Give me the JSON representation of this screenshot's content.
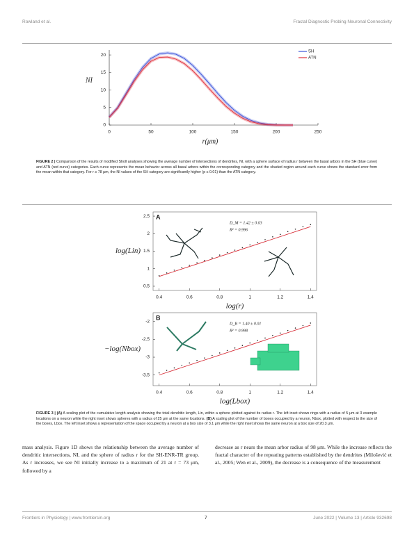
{
  "header": {
    "left": "Rowland et al.",
    "right": "Fractal Diagnostic Probing Neuronal Connectivity"
  },
  "chart_data": [
    {
      "type": "line",
      "ylabel": "NI",
      "xlabel": "r(μm)",
      "x": [
        0,
        10,
        20,
        30,
        40,
        50,
        60,
        70,
        80,
        90,
        100,
        110,
        120,
        130,
        140,
        150,
        160,
        170,
        180,
        190,
        200,
        210,
        220
      ],
      "series": [
        {
          "name": "SH",
          "color": "#3a52d9",
          "values": [
            2.3,
            5,
            9,
            13,
            16.5,
            19,
            20.3,
            20.6,
            20.2,
            19,
            17,
            14.5,
            11.8,
            9,
            6.4,
            4.2,
            2.5,
            1.3,
            0.6,
            0.2,
            0.05,
            0,
            0
          ]
        },
        {
          "name": "ATN",
          "color": "#e0303a",
          "values": [
            2.2,
            4.8,
            8.6,
            12.5,
            15.8,
            18.2,
            19.3,
            19.4,
            18.8,
            17.5,
            15.5,
            13,
            10.3,
            7.7,
            5.3,
            3.4,
            1.9,
            0.9,
            0.35,
            0.1,
            0,
            0,
            0
          ]
        }
      ],
      "xlim": [
        0,
        250
      ],
      "xticks": [
        0,
        50,
        100,
        150,
        200,
        250
      ],
      "ylim": [
        0,
        21.4
      ],
      "yticks": [
        0,
        5,
        10,
        15,
        20
      ],
      "legend": "upper right"
    },
    {
      "type": "scatter",
      "panel_label": "A",
      "ylabel": "log(Lin)",
      "xlabel": "log(r)",
      "color": "#222222",
      "fit_color": "#d8303a",
      "x": [
        0.4,
        0.45,
        0.5,
        0.55,
        0.6,
        0.65,
        0.7,
        0.75,
        0.8,
        0.85,
        0.9,
        0.95,
        1,
        1.05,
        1.1,
        1.15,
        1.2,
        1.25,
        1.3,
        1.35,
        1.4
      ],
      "values": [
        0.74,
        0.82,
        0.9,
        0.97,
        1.04,
        1.11,
        1.18,
        1.25,
        1.33,
        1.4,
        1.47,
        1.54,
        1.62,
        1.69,
        1.77,
        1.85,
        1.92,
        2,
        2.07,
        2.14,
        2.2
      ],
      "fit": {
        "x": [
          0.4,
          1.4
        ],
        "values": [
          0.78,
          2.2
        ]
      },
      "annotations": [
        "D_M = 1.42 ± 0.03",
        "R² = 0.996"
      ],
      "xlim": [
        0.36,
        1.44
      ],
      "xticks": [
        0.4,
        0.6,
        0.8,
        1,
        1.2,
        1.4
      ],
      "ylim": [
        0.38,
        2.62
      ],
      "yticks": [
        0.5,
        1,
        1.5,
        2,
        2.5
      ]
    },
    {
      "type": "scatter",
      "panel_label": "B",
      "ylabel": "−log(Nbox)",
      "xlabel": "log(Lbox)",
      "color": "#222222",
      "fit_color": "#d8303a",
      "x": [
        0.4,
        0.45,
        0.5,
        0.55,
        0.6,
        0.65,
        0.7,
        0.75,
        0.8,
        0.85,
        0.9,
        0.95,
        1,
        1.05,
        1.1,
        1.15,
        1.2,
        1.25,
        1.3,
        1.35,
        1.4
      ],
      "values": [
        -3.5,
        -3.43,
        -3.36,
        -3.29,
        -3.22,
        -3.15,
        -3.08,
        -3.01,
        -2.94,
        -2.87,
        -2.8,
        -2.73,
        -2.66,
        -2.59,
        -2.52,
        -2.45,
        -2.38,
        -2.31,
        -2.24,
        -2.17,
        -2.1
      ],
      "fit": {
        "x": [
          0.4,
          1.4
        ],
        "values": [
          -3.5,
          -2.1
        ]
      },
      "annotations": [
        "D_B = 1.40 ± 0.01",
        "R² = 0.998"
      ],
      "xlim": [
        0.36,
        1.44
      ],
      "xticks": [
        0.4,
        0.6,
        0.8,
        1,
        1.2,
        1.4
      ],
      "ylim": [
        -3.8,
        -1.75
      ],
      "yticks": [
        -3.5,
        -3,
        -2.5,
        -2
      ]
    }
  ],
  "figure2_caption": {
    "label": "FIGURE 2 |",
    "text": "Comparison of the results of modified Sholl analyses showing the average number of intersections of dendrites, NI, with a sphere surface of radius r between the basal arbors in the SH (blue curve) and ATN (red curve) categories. Each curve represents the mean behavior across all basal arbors within the corresponding category and the shaded region around each curve shows the standard error from the mean within that category. For r ≥ 78 μm, the NI values of the SH category are significantly higher (p ≤ 0.01) than the ATN category."
  },
  "figure3_caption": {
    "label": "FIGURE 3 |",
    "a_label": "(A)",
    "a_text": " A scaling plot of the cumulative length analysis showing the total dendritic length, Lin, within a sphere plotted against its radius r. The left inset shows rings with a radius of 5 μm at 3 example locations on a neuron while the right inset shows spheres with a radius of 25 μm at the same locations. ",
    "b_label": "(B)",
    "b_text": " A scaling plot of the number of boxes occupied by a neuron, Nbox, plotted with respect to the size of the boxes, Lbox. The left inset shows a representation of the space occupied by a neuron at a box size of 3.1 μm while the right inset shows the same neuron at a box size of 20.3 μm."
  },
  "body": {
    "left": "mass analysis. Figure 1D shows the relationship between the average number of dendritic intersections, NI, and the sphere of radius r for the SH-ENR-TR group. As r increases, we see NI initially increase to a maximum of 21 at r = 73 μm, followed by a",
    "right": "decrease as r nears the mean arbor radius of 98 μm. While the increase reflects the fractal character of the repeating patterns established by the dendrites (Milošević et al., 2005; Wen et al., 2009), the decrease is a consequence of the measurement"
  },
  "footer": {
    "left": "Frontiers in Physiology | www.frontiersin.org",
    "page": "7",
    "right": "June 2022 | Volume 13 | Article 932698"
  }
}
